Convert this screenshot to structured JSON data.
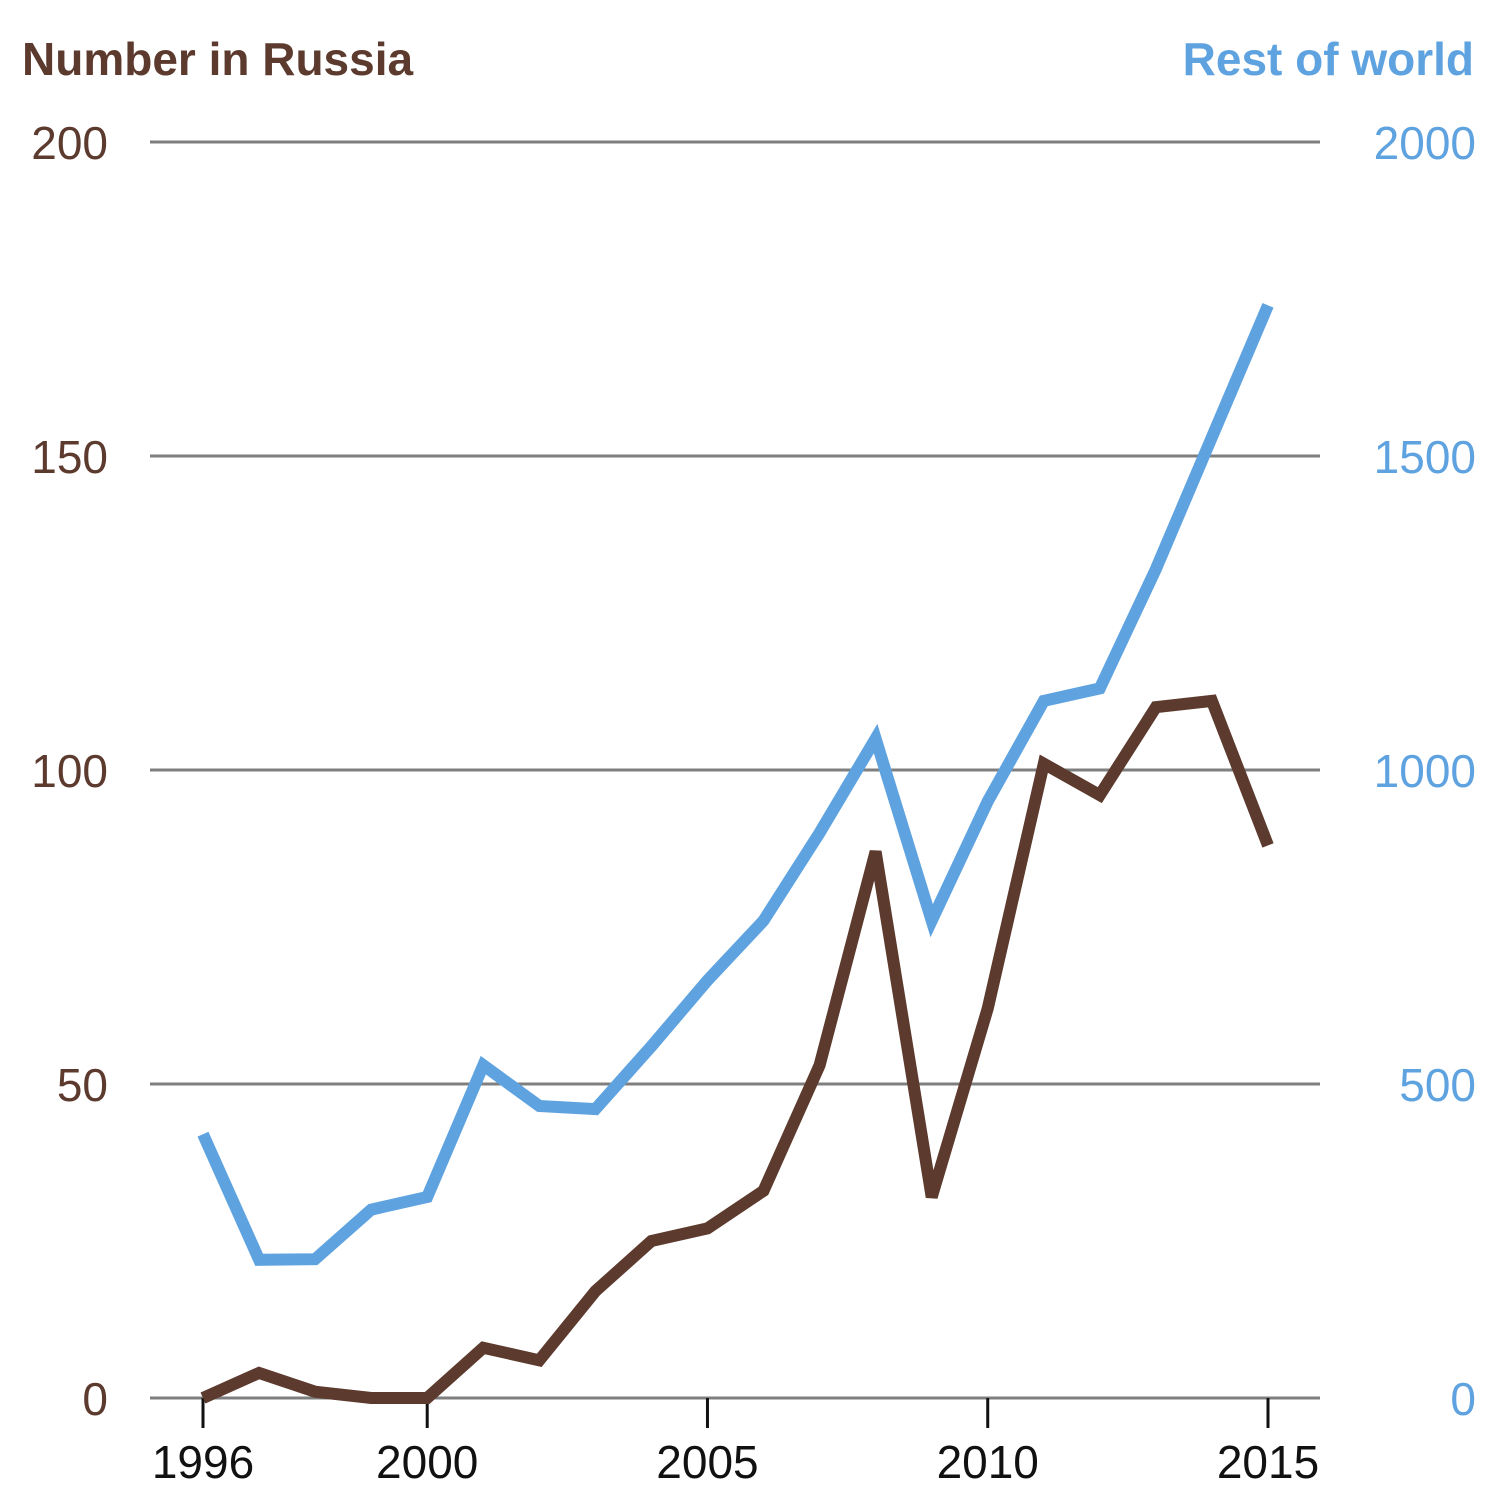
{
  "chart_data": {
    "type": "line",
    "title_left": "Number in Russia",
    "title_right": "Rest of world",
    "x": [
      1996,
      1997,
      1998,
      1999,
      2000,
      2001,
      2002,
      2003,
      2004,
      2005,
      2006,
      2007,
      2008,
      2009,
      2010,
      2011,
      2012,
      2013,
      2014,
      2015
    ],
    "x_ticks": [
      "1996",
      "2000",
      "2005",
      "2010",
      "2015"
    ],
    "x_tick_values": [
      1996,
      2000,
      2005,
      2010,
      2015
    ],
    "y_left_ticks": [
      "0",
      "50",
      "100",
      "150",
      "200"
    ],
    "y_left_tick_values": [
      0,
      50,
      100,
      150,
      200
    ],
    "y_right_ticks": [
      "0",
      "500",
      "1000",
      "1500",
      "2000"
    ],
    "y_right_tick_values": [
      0,
      500,
      1000,
      1500,
      2000
    ],
    "ylim_left": [
      0,
      200
    ],
    "ylim_right": [
      0,
      2000
    ],
    "xlim": [
      1995.05,
      2015.95
    ],
    "series": [
      {
        "name": "Number in Russia",
        "axis": "left",
        "color": "#5c3a2e",
        "values": [
          0,
          4,
          1,
          0,
          0,
          8,
          6,
          17,
          25,
          27,
          33,
          53,
          87,
          32,
          62,
          101,
          96,
          110,
          111,
          88
        ]
      },
      {
        "name": "Rest of world",
        "axis": "right",
        "color": "#5ea3e0",
        "values": [
          420,
          220,
          221,
          300,
          320,
          530,
          465,
          460,
          560,
          665,
          760,
          900,
          1050,
          760,
          950,
          1110,
          1130,
          1320,
          1530,
          1740
        ]
      }
    ],
    "grid": true
  },
  "colors": {
    "left_axis": "#5c3a2e",
    "right_axis": "#5ea3e0",
    "grid": "#7f7f7f",
    "x_labels": "#111111"
  }
}
